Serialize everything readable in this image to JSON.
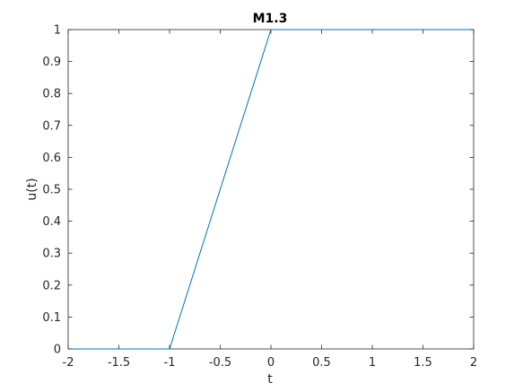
{
  "chart_data": {
    "type": "line",
    "title": "M1.3",
    "xlabel": "t",
    "ylabel": "u(t)",
    "xlim": [
      -2,
      2
    ],
    "ylim": [
      0,
      1
    ],
    "xticks": [
      "-2",
      "-1.5",
      "-1",
      "-0.5",
      "0",
      "0.5",
      "1",
      "1.5",
      "2"
    ],
    "yticks": [
      "0",
      "0.1",
      "0.2",
      "0.3",
      "0.4",
      "0.5",
      "0.6",
      "0.7",
      "0.8",
      "0.9",
      "1"
    ],
    "grid": false,
    "series": [
      {
        "color": "#0072bd",
        "x": [
          -2,
          -1,
          0,
          2
        ],
        "y": [
          0,
          0,
          1,
          1
        ]
      }
    ]
  }
}
